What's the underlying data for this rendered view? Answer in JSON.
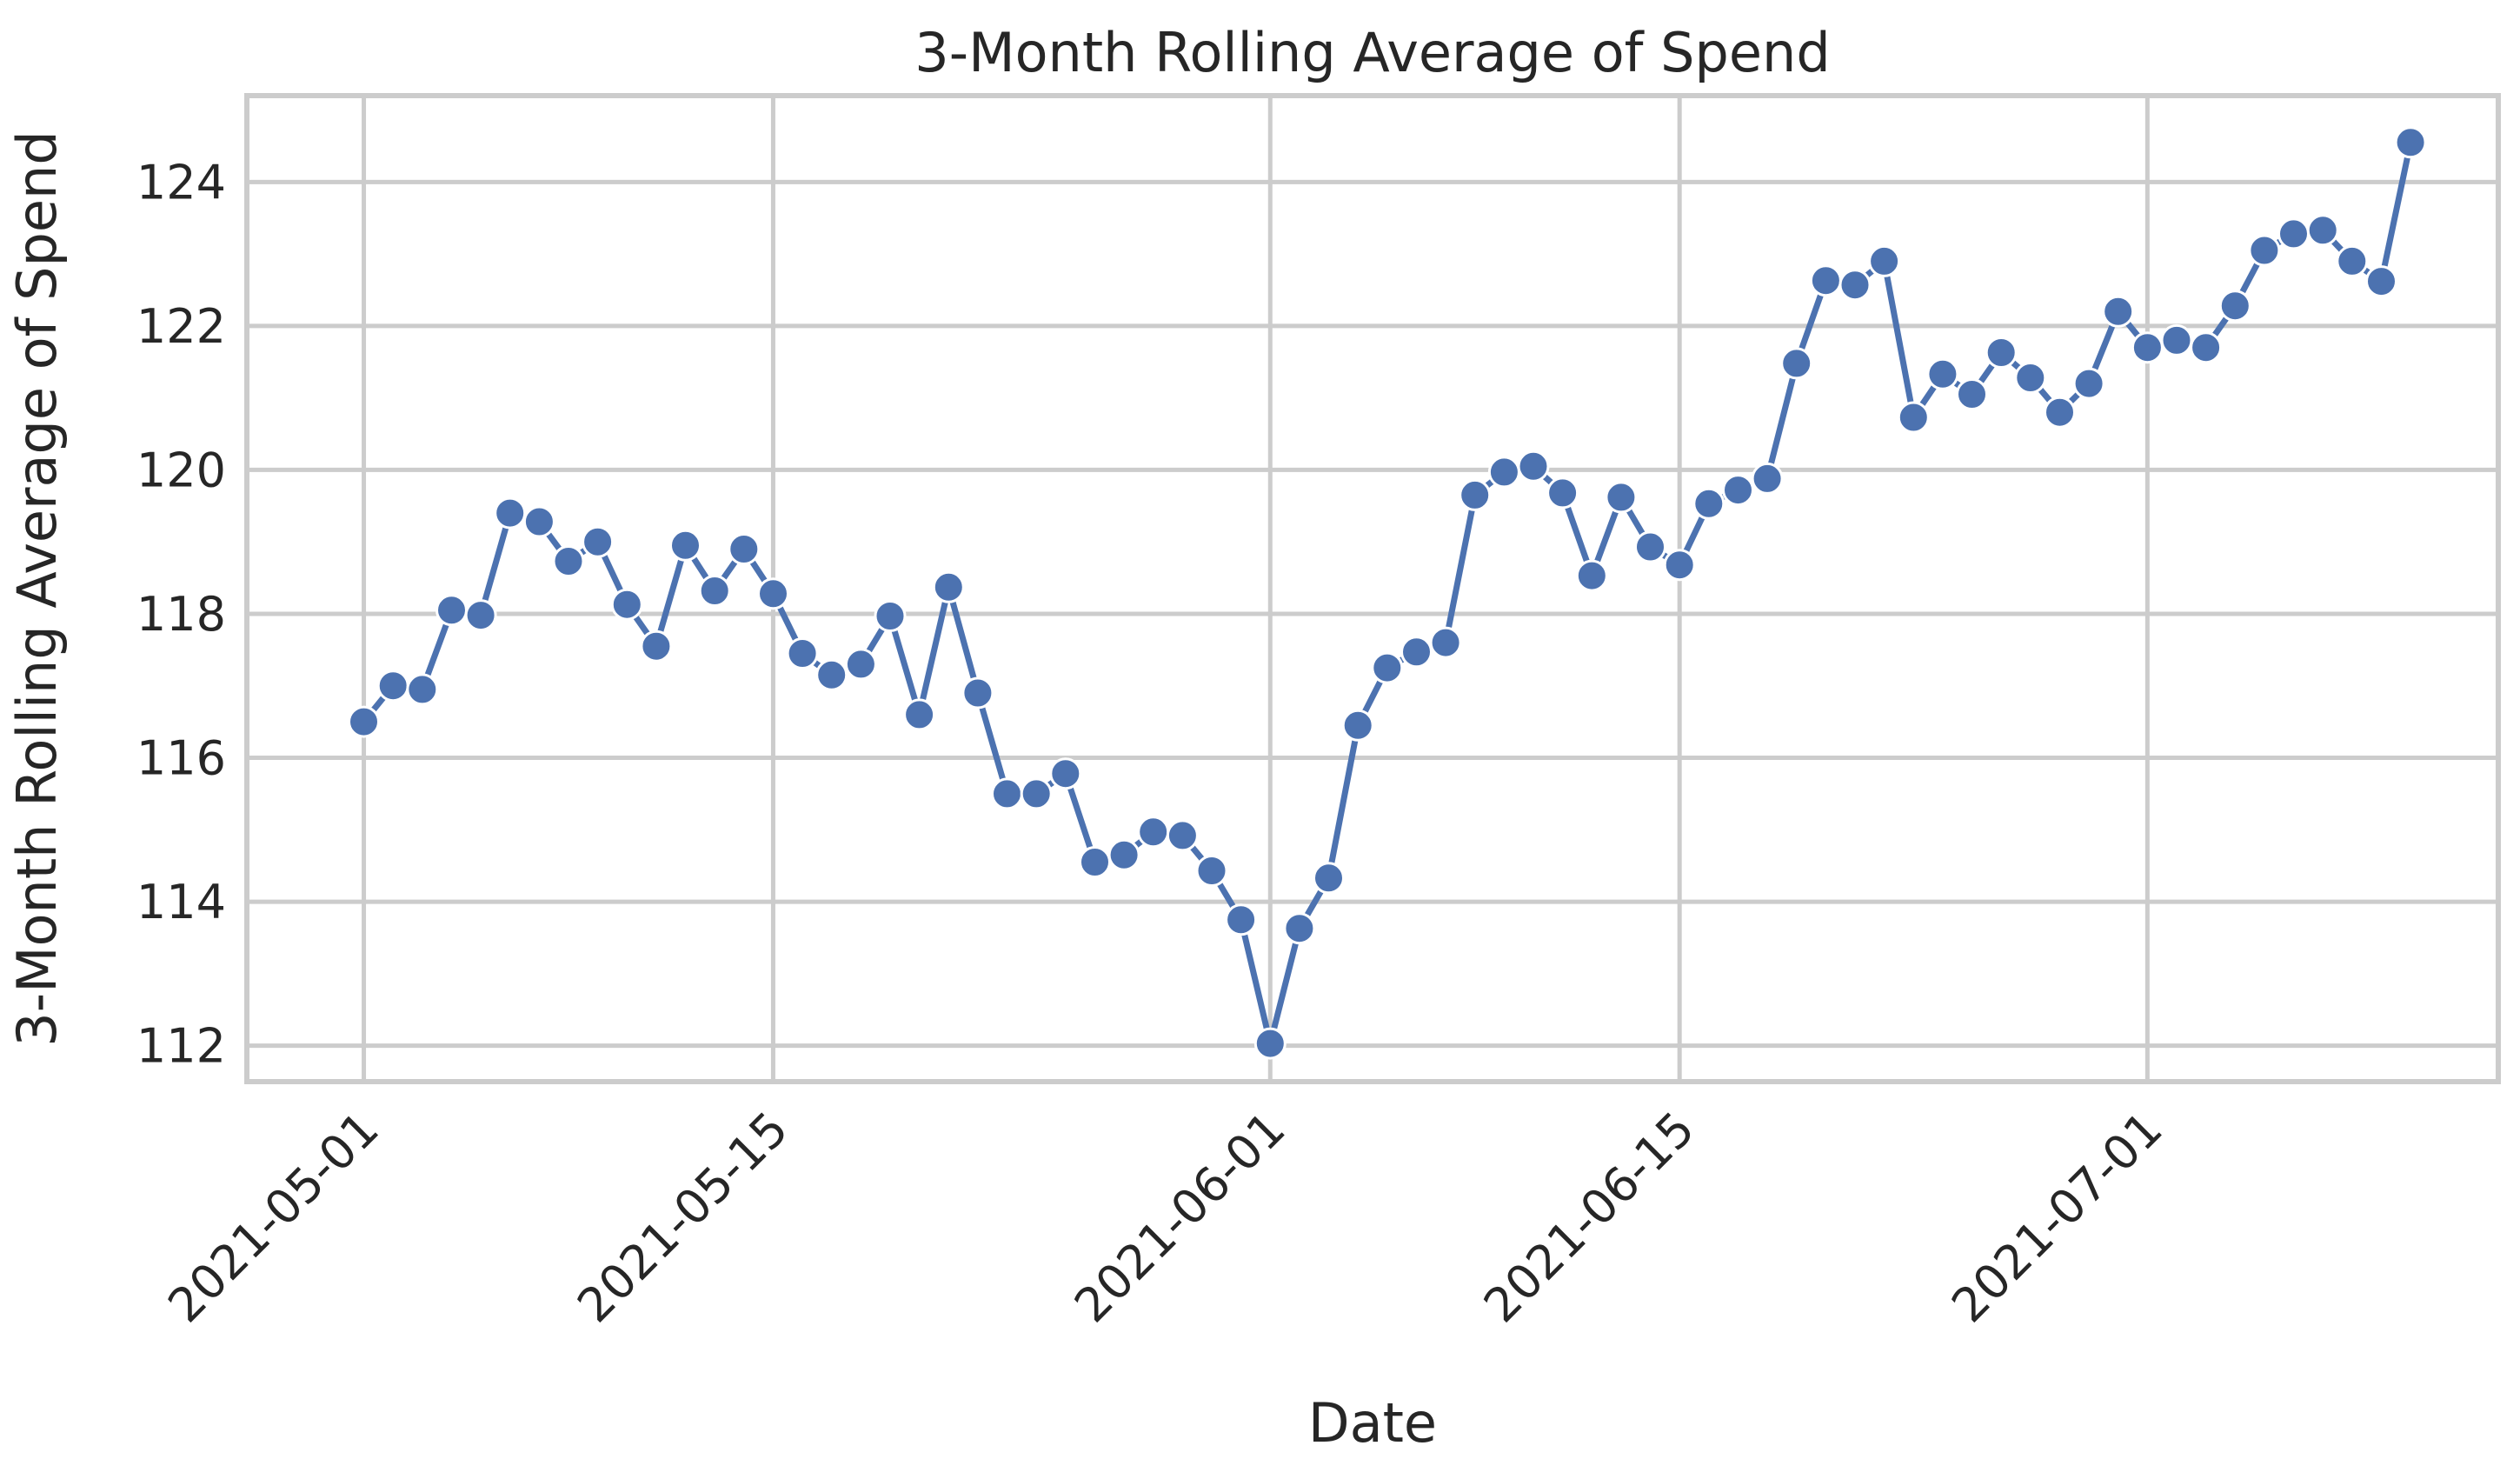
{
  "chart_data": {
    "type": "line",
    "title": "3-Month Rolling Average of Spend",
    "xlabel": "Date",
    "ylabel": "3-Month Rolling Average of Spend",
    "x_tick_labels": [
      "2021-05-01",
      "2021-05-15",
      "2021-06-01",
      "2021-06-15",
      "2021-07-01"
    ],
    "y_tick_labels": [
      "112",
      "114",
      "116",
      "118",
      "120",
      "122",
      "124"
    ],
    "ylim": [
      111.5,
      125.2
    ],
    "xlim": [
      "2021-04-27",
      "2021-07-13"
    ],
    "grid": true,
    "marker": "circle",
    "colors": {
      "series": "#4c72b0",
      "grid": "#cccccc",
      "spine": "#cccccc",
      "text": "#262626"
    },
    "series": [
      {
        "x": [
          "2021-05-01",
          "2021-05-02",
          "2021-05-03",
          "2021-05-04",
          "2021-05-05",
          "2021-05-06",
          "2021-05-07",
          "2021-05-08",
          "2021-05-09",
          "2021-05-10",
          "2021-05-11",
          "2021-05-12",
          "2021-05-13",
          "2021-05-14",
          "2021-05-15",
          "2021-05-16",
          "2021-05-17",
          "2021-05-18",
          "2021-05-19",
          "2021-05-20",
          "2021-05-21",
          "2021-05-22",
          "2021-05-23",
          "2021-05-24",
          "2021-05-25",
          "2021-05-26",
          "2021-05-27",
          "2021-05-28",
          "2021-05-29",
          "2021-05-30",
          "2021-05-31",
          "2021-06-01",
          "2021-06-02",
          "2021-06-03",
          "2021-06-04",
          "2021-06-05",
          "2021-06-06",
          "2021-06-07",
          "2021-06-08",
          "2021-06-09",
          "2021-06-10",
          "2021-06-11",
          "2021-06-12",
          "2021-06-13",
          "2021-06-14",
          "2021-06-15",
          "2021-06-16",
          "2021-06-17",
          "2021-06-18",
          "2021-06-19",
          "2021-06-20",
          "2021-06-21",
          "2021-06-22",
          "2021-06-23",
          "2021-06-24",
          "2021-06-25",
          "2021-06-26",
          "2021-06-27",
          "2021-06-28",
          "2021-06-29",
          "2021-06-30",
          "2021-07-01",
          "2021-07-02",
          "2021-07-03",
          "2021-07-04",
          "2021-07-05",
          "2021-07-06",
          "2021-07-07",
          "2021-07-08",
          "2021-07-09",
          "2021-07-10"
        ],
        "values": [
          116.5,
          117.0,
          116.95,
          118.05,
          117.98,
          119.4,
          119.28,
          118.73,
          119.0,
          118.13,
          117.55,
          118.95,
          118.32,
          118.9,
          118.28,
          117.45,
          117.15,
          117.3,
          117.97,
          116.6,
          118.37,
          116.9,
          115.5,
          115.5,
          115.78,
          114.55,
          114.65,
          114.97,
          114.92,
          114.43,
          113.75,
          112.03,
          113.63,
          114.33,
          116.45,
          117.25,
          117.47,
          117.6,
          119.65,
          119.97,
          120.05,
          119.68,
          118.53,
          119.62,
          118.93,
          118.68,
          119.53,
          119.72,
          119.88,
          121.48,
          122.63,
          122.57,
          122.9,
          120.73,
          121.33,
          121.05,
          121.63,
          121.28,
          120.8,
          121.2,
          122.2,
          121.7,
          121.8,
          121.7,
          122.28,
          123.05,
          123.28,
          123.33,
          122.9,
          122.62,
          124.55
        ]
      }
    ]
  }
}
